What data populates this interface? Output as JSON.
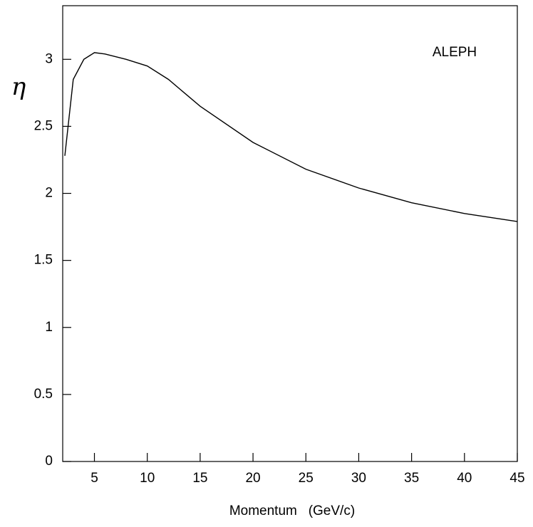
{
  "chart_data": {
    "type": "line",
    "annotation": "ALEPH",
    "x_label": "Momentum   (GeV/c)",
    "y_label": "η",
    "x": [
      2.2,
      3,
      4,
      5,
      6,
      8,
      10,
      12,
      15,
      20,
      25,
      30,
      35,
      40,
      45
    ],
    "series": [
      {
        "color": "#000000",
        "values": [
          2.28,
          2.85,
          3.0,
          3.05,
          3.04,
          3.0,
          2.95,
          2.85,
          2.65,
          2.38,
          2.18,
          2.04,
          1.93,
          1.85,
          1.79
        ]
      }
    ],
    "xlim": [
      2,
      45
    ],
    "ylim": [
      0,
      3.4
    ],
    "xticks": [
      5,
      10,
      15,
      20,
      25,
      30,
      35,
      40,
      45
    ],
    "yticks": [
      0,
      0.5,
      1,
      1.5,
      2,
      2.5,
      3
    ]
  }
}
